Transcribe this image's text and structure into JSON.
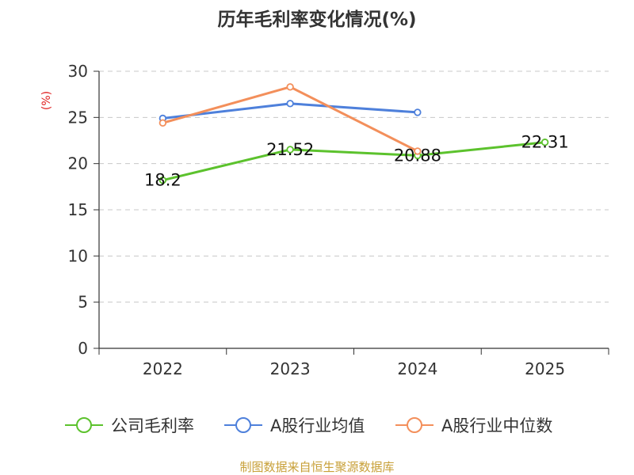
{
  "chart_data": {
    "type": "line",
    "title": "历年毛利率变化情况(%)",
    "ylabel": "(%)",
    "xlabel": "",
    "categories": [
      "2022",
      "2023",
      "2024",
      "2025"
    ],
    "ylim": [
      0,
      30
    ],
    "yticks": [
      0,
      5,
      10,
      15,
      20,
      25,
      30
    ],
    "grid": true,
    "legend_position": "bottom",
    "series": [
      {
        "name": "公司毛利率",
        "color": "#5cc22d",
        "values": [
          18.2,
          21.52,
          20.88,
          22.31
        ],
        "data_labels": [
          "18.2",
          "21.52",
          "20.88",
          "22.31"
        ]
      },
      {
        "name": "A股行业均值",
        "color": "#4e80db",
        "values": [
          24.9,
          26.5,
          25.55,
          null
        ]
      },
      {
        "name": "A股行业中位数",
        "color": "#f38f5b",
        "values": [
          24.4,
          28.3,
          21.35,
          null
        ]
      }
    ]
  },
  "source": "制图数据来自恒生聚源数据库"
}
